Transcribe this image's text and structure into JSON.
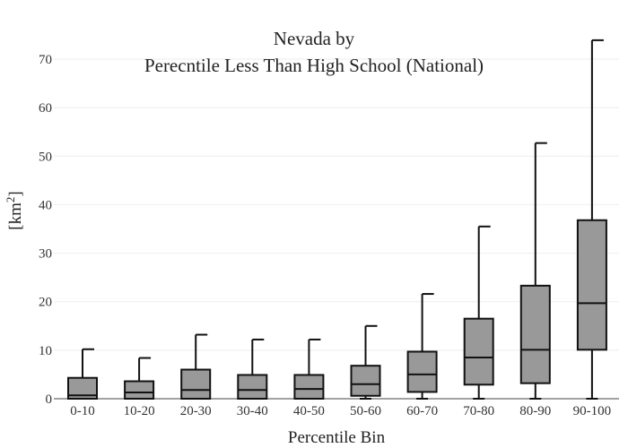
{
  "chart_data": {
    "type": "box",
    "title_line1": "Nevada  by",
    "title_line2": "Perecntile Less Than High School (National)",
    "xlabel": "Percentile Bin",
    "ylabel_base": "[km",
    "ylabel_sup": "2",
    "ylabel_end": "]",
    "ylim": [
      0,
      75
    ],
    "yticks": [
      0,
      10,
      20,
      30,
      40,
      50,
      60,
      70
    ],
    "grid": true,
    "box_color": "#999999",
    "line_color": "#111111",
    "categories": [
      "0-10",
      "10-20",
      "20-30",
      "30-40",
      "40-50",
      "50-60",
      "60-70",
      "70-80",
      "80-90",
      "90-100"
    ],
    "boxes": [
      {
        "category": "0-10",
        "min": 0,
        "q1": 0,
        "median": 0.7,
        "q3": 4.3,
        "max": 10.2
      },
      {
        "category": "10-20",
        "min": 0,
        "q1": 0,
        "median": 1.3,
        "q3": 3.6,
        "max": 8.4
      },
      {
        "category": "20-30",
        "min": 0,
        "q1": 0,
        "median": 1.8,
        "q3": 6.0,
        "max": 13.2
      },
      {
        "category": "30-40",
        "min": 0,
        "q1": 0,
        "median": 1.8,
        "q3": 4.9,
        "max": 12.2
      },
      {
        "category": "40-50",
        "min": 0,
        "q1": 0,
        "median": 2.0,
        "q3": 4.9,
        "max": 12.2
      },
      {
        "category": "50-60",
        "min": 0,
        "q1": 0.6,
        "median": 3.0,
        "q3": 6.8,
        "max": 15.0
      },
      {
        "category": "60-70",
        "min": 0,
        "q1": 1.4,
        "median": 5.0,
        "q3": 9.7,
        "max": 21.6
      },
      {
        "category": "70-80",
        "min": 0,
        "q1": 2.9,
        "median": 8.5,
        "q3": 16.5,
        "max": 35.5
      },
      {
        "category": "80-90",
        "min": 0,
        "q1": 3.2,
        "median": 10.1,
        "q3": 23.3,
        "max": 52.7
      },
      {
        "category": "90-100",
        "min": 0,
        "q1": 10.1,
        "median": 19.7,
        "q3": 36.8,
        "max": 73.9
      }
    ]
  }
}
